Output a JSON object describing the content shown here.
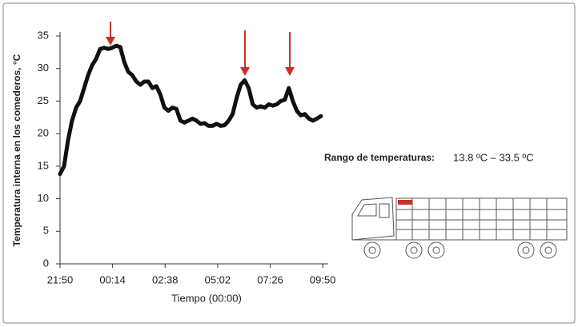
{
  "chart_data": {
    "type": "line",
    "ylabel": "Temperatura interna en los comederos, °C",
    "xlabel": "Tiempo (00:00)",
    "annotation_label": "Rango de temperaturas:",
    "annotation_value": "13.8 ºC – 33.5 ºC",
    "color": "#111111",
    "x": [
      0,
      11,
      22,
      33,
      44,
      55,
      66,
      77,
      88,
      99,
      110,
      121,
      132,
      143,
      154,
      165,
      176,
      187,
      198,
      209,
      220,
      231,
      242,
      253,
      264,
      275,
      286,
      297,
      308,
      319,
      330,
      341,
      352,
      363,
      374,
      385,
      396,
      407,
      418,
      429,
      440,
      451,
      462,
      473,
      484,
      495,
      506,
      517,
      528,
      539,
      550,
      561,
      572,
      583,
      594,
      605,
      616,
      627,
      638,
      649,
      660,
      671,
      682,
      693,
      704,
      715
    ],
    "values": [
      13.8,
      15,
      19,
      22,
      24,
      25,
      27,
      29,
      30.5,
      31.5,
      33,
      33.2,
      33,
      33.2,
      33.5,
      33.3,
      31,
      29.5,
      29,
      28,
      27.5,
      28,
      28,
      27,
      27.3,
      26,
      24,
      23.5,
      24,
      23.8,
      22,
      21.7,
      22,
      22.3,
      22,
      21.5,
      21.6,
      21.2,
      21.2,
      21.5,
      21.2,
      21.3,
      22,
      23,
      25.5,
      27.5,
      28.2,
      27,
      24.5,
      24,
      24.2,
      24,
      24.5,
      24.3,
      24.5,
      25,
      25.2,
      27,
      25,
      23.5,
      22.8,
      23,
      22.3,
      22,
      22.3,
      22.7
    ],
    "xlim": [
      0,
      735
    ],
    "xticks": [
      {
        "value": 0,
        "label": "21:50"
      },
      {
        "value": 144,
        "label": "00:14"
      },
      {
        "value": 288,
        "label": "02:38"
      },
      {
        "value": 432,
        "label": "05:02"
      },
      {
        "value": 576,
        "label": "07:26"
      },
      {
        "value": 720,
        "label": "09:50"
      }
    ],
    "ylim": [
      0,
      35
    ],
    "yticks": [
      0,
      5,
      10,
      15,
      20,
      25,
      30,
      35
    ]
  }
}
